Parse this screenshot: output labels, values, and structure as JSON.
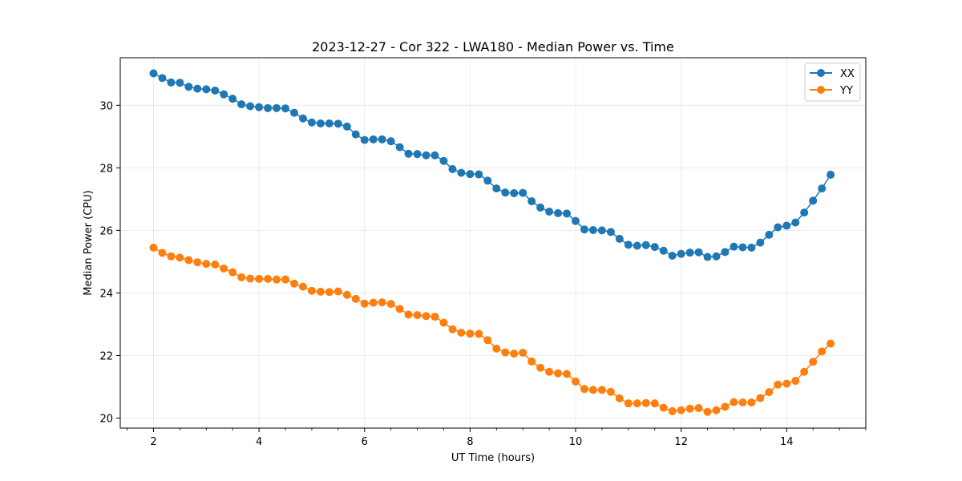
{
  "chart_data": {
    "type": "line",
    "title": "2023-12-27 - Cor 322 - LWA180 - Median Power vs. Time",
    "xlabel": "UT Time (hours)",
    "ylabel": "Median Power (CPU)",
    "xlim": [
      1.37,
      15.5
    ],
    "ylim": [
      19.68,
      31.52
    ],
    "xticks": [
      2,
      4,
      6,
      8,
      10,
      12,
      14
    ],
    "yticks": [
      20,
      22,
      24,
      26,
      28,
      30
    ],
    "x_minor_step": 0.5,
    "grid": true,
    "legend_position": "upper-right",
    "x": [
      2.0,
      2.167,
      2.333,
      2.5,
      2.667,
      2.833,
      3.0,
      3.167,
      3.333,
      3.5,
      3.667,
      3.833,
      4.0,
      4.167,
      4.333,
      4.5,
      4.667,
      4.833,
      5.0,
      5.167,
      5.333,
      5.5,
      5.667,
      5.833,
      6.0,
      6.167,
      6.333,
      6.5,
      6.667,
      6.833,
      7.0,
      7.167,
      7.333,
      7.5,
      7.667,
      7.833,
      8.0,
      8.167,
      8.333,
      8.5,
      8.667,
      8.833,
      9.0,
      9.167,
      9.333,
      9.5,
      9.667,
      9.833,
      10.0,
      10.167,
      10.333,
      10.5,
      10.667,
      10.833,
      11.0,
      11.167,
      11.333,
      11.5,
      11.667,
      11.833,
      12.0,
      12.167,
      12.333,
      12.5,
      12.667,
      12.833,
      13.0,
      13.167,
      13.333,
      13.5,
      13.667,
      13.833,
      14.0,
      14.167,
      14.333,
      14.5,
      14.667,
      14.833
    ],
    "series": [
      {
        "name": "XX",
        "color": "#1f77b4",
        "values": [
          31.02,
          30.87,
          30.73,
          30.72,
          30.59,
          30.53,
          30.51,
          30.47,
          30.35,
          30.21,
          30.03,
          29.97,
          29.94,
          29.91,
          29.91,
          29.9,
          29.76,
          29.58,
          29.45,
          29.42,
          29.42,
          29.41,
          29.32,
          29.07,
          28.89,
          28.91,
          28.91,
          28.85,
          28.66,
          28.45,
          28.44,
          28.4,
          28.4,
          28.22,
          27.96,
          27.84,
          27.8,
          27.79,
          27.59,
          27.34,
          27.21,
          27.19,
          27.2,
          26.93,
          26.73,
          26.6,
          26.55,
          26.54,
          26.3,
          26.03,
          26.01,
          26.0,
          25.95,
          25.73,
          25.54,
          25.51,
          25.53,
          25.47,
          25.35,
          25.19,
          25.25,
          25.29,
          25.3,
          25.15,
          25.17,
          25.31,
          25.48,
          25.46,
          25.45,
          25.61,
          25.86,
          26.1,
          26.15,
          26.25,
          26.57,
          26.95,
          27.34,
          27.78
        ]
      },
      {
        "name": "YY",
        "color": "#ff7f0e",
        "values": [
          25.45,
          25.28,
          25.17,
          25.13,
          25.05,
          24.98,
          24.93,
          24.91,
          24.78,
          24.66,
          24.5,
          24.46,
          24.45,
          24.45,
          24.43,
          24.43,
          24.3,
          24.2,
          24.07,
          24.04,
          24.03,
          24.05,
          23.94,
          23.81,
          23.66,
          23.69,
          23.7,
          23.65,
          23.49,
          23.31,
          23.29,
          23.26,
          23.24,
          23.05,
          22.84,
          22.73,
          22.7,
          22.69,
          22.49,
          22.22,
          22.1,
          22.06,
          22.09,
          21.81,
          21.61,
          21.48,
          21.43,
          21.41,
          21.17,
          20.93,
          20.9,
          20.9,
          20.84,
          20.63,
          20.47,
          20.47,
          20.48,
          20.47,
          20.33,
          20.22,
          20.25,
          20.3,
          20.32,
          20.2,
          20.25,
          20.36,
          20.51,
          20.5,
          20.5,
          20.64,
          20.83,
          21.07,
          21.1,
          21.19,
          21.48,
          21.8,
          22.13,
          22.38
        ]
      }
    ]
  }
}
